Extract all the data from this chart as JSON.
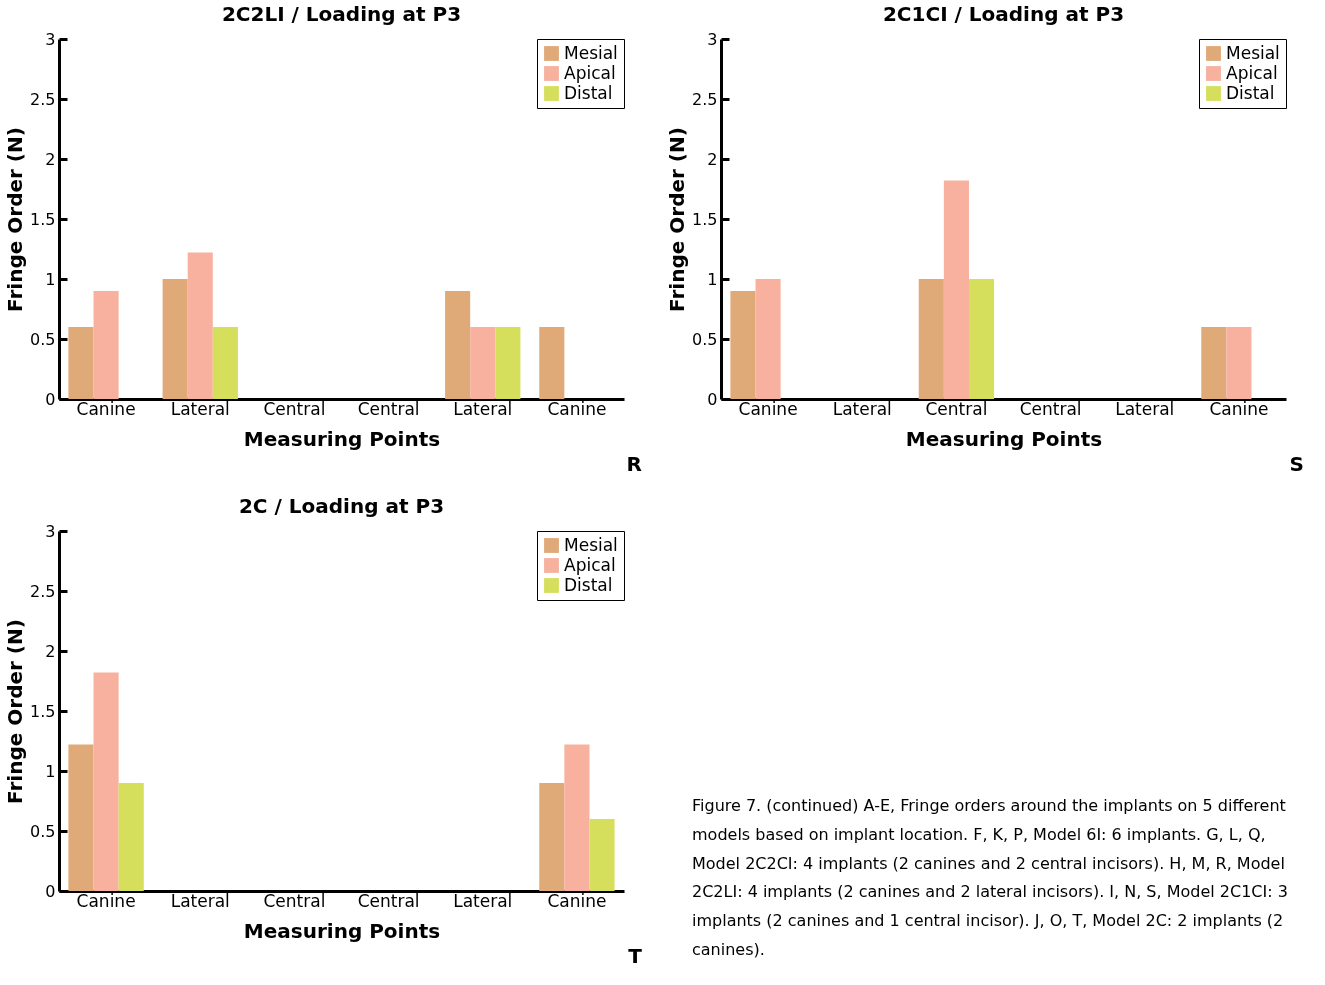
{
  "chart_data": [
    {
      "type": "bar",
      "title": "2C2LI /  Loading at P3",
      "xlabel": "Measuring Points",
      "ylabel": "Fringe Order (N)",
      "categories": [
        "Canine",
        "Lateral",
        "Central",
        "Central",
        "Lateral",
        "Canine"
      ],
      "ylim": [
        0,
        3
      ],
      "yticks": [
        0,
        0.5,
        1,
        1.5,
        2,
        2.5,
        3
      ],
      "legend": "top right",
      "annotations": [
        "R"
      ],
      "series": [
        {
          "name": "Mesial",
          "color": "#e0aa78",
          "values": [
            0.6,
            1.0,
            0,
            0,
            0.9,
            0.6
          ]
        },
        {
          "name": "Apical",
          "color": "#f7b19e",
          "values": [
            0.9,
            1.22,
            0,
            0,
            0.6,
            0
          ]
        },
        {
          "name": "Distal",
          "color": "#d5df5c",
          "values": [
            0,
            0.6,
            0,
            0,
            0.6,
            0
          ]
        }
      ]
    },
    {
      "type": "bar",
      "title": "2C1CI /  Loading at P3",
      "xlabel": "Measuring Points",
      "ylabel": "Fringe Order (N)",
      "categories": [
        "Canine",
        "Lateral",
        "Central",
        "Central",
        "Lateral",
        "Canine"
      ],
      "ylim": [
        0,
        3
      ],
      "yticks": [
        0,
        0.5,
        1,
        1.5,
        2,
        2.5,
        3
      ],
      "legend": "top right",
      "annotations": [
        "S"
      ],
      "series": [
        {
          "name": "Mesial",
          "color": "#e0aa78",
          "values": [
            0.9,
            0,
            1.0,
            0,
            0,
            0.6
          ]
        },
        {
          "name": "Apical",
          "color": "#f7b19e",
          "values": [
            1.0,
            0,
            1.82,
            0,
            0,
            0.6
          ]
        },
        {
          "name": "Distal",
          "color": "#d5df5c",
          "values": [
            0,
            0,
            1.0,
            0,
            0,
            0
          ]
        }
      ]
    },
    {
      "type": "bar",
      "title": "2C /  Loading at P3",
      "xlabel": "Measuring Points",
      "ylabel": "Fringe Order (N)",
      "categories": [
        "Canine",
        "Lateral",
        "Central",
        "Central",
        "Lateral",
        "Canine"
      ],
      "ylim": [
        0,
        3
      ],
      "yticks": [
        0,
        0.5,
        1,
        1.5,
        2,
        2.5,
        3
      ],
      "legend": "top right",
      "annotations": [
        "T",
        "Figure 7. (continued) A-E, Fringe orders around the implants on 5 different models based on implant location. F, K, P, Model 6I: 6 implants. G, L, Q, Model 2C2CI: 4 implants (2 canines and 2 central incisors). H, M, R, Model 2C2LI: 4 implants (2 canines and 2 lateral incisors). I, N, S, Model 2C1CI: 3 implants (2 canines and 1 central incisor). J, O, T, Model 2C: 2 implants (2 canines)."
      ],
      "series": [
        {
          "name": "Mesial",
          "color": "#e0aa78",
          "values": [
            1.22,
            0,
            0,
            0,
            0,
            0.9
          ]
        },
        {
          "name": "Apical",
          "color": "#f7b19e",
          "values": [
            1.82,
            0,
            0,
            0,
            0,
            1.22
          ]
        },
        {
          "name": "Distal",
          "color": "#d5df5c",
          "values": [
            0.9,
            0,
            0,
            0,
            0,
            0.6
          ]
        }
      ]
    }
  ]
}
